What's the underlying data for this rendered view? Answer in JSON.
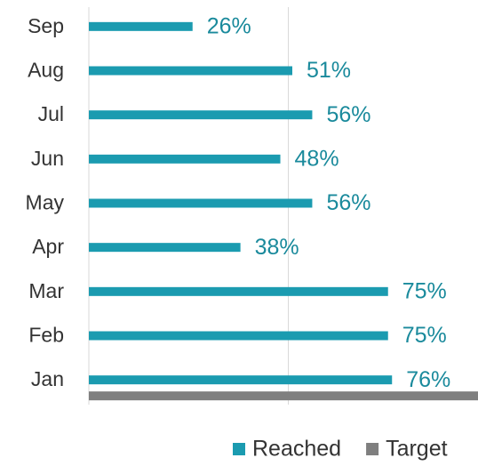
{
  "chart_data": {
    "type": "bar",
    "orientation": "horizontal",
    "categories": [
      "Jan",
      "Feb",
      "Mar",
      "Apr",
      "May",
      "Jun",
      "Jul",
      "Aug",
      "Sep"
    ],
    "series": [
      {
        "name": "Reached",
        "color": "#1b9bb0",
        "values": [
          76,
          75,
          75,
          38,
          56,
          48,
          56,
          51,
          26
        ],
        "value_labels": [
          "76%",
          "75%",
          "75%",
          "38%",
          "56%",
          "48%",
          "56%",
          "51%",
          "26%"
        ]
      },
      {
        "name": "Target",
        "color": "#7f7f7f",
        "values": [
          100,
          null,
          null,
          null,
          null,
          null,
          null,
          null,
          null
        ]
      }
    ],
    "xlim": [
      0,
      100
    ],
    "xticks": [
      0,
      50,
      100
    ],
    "grid": true,
    "legend": "bottom"
  }
}
